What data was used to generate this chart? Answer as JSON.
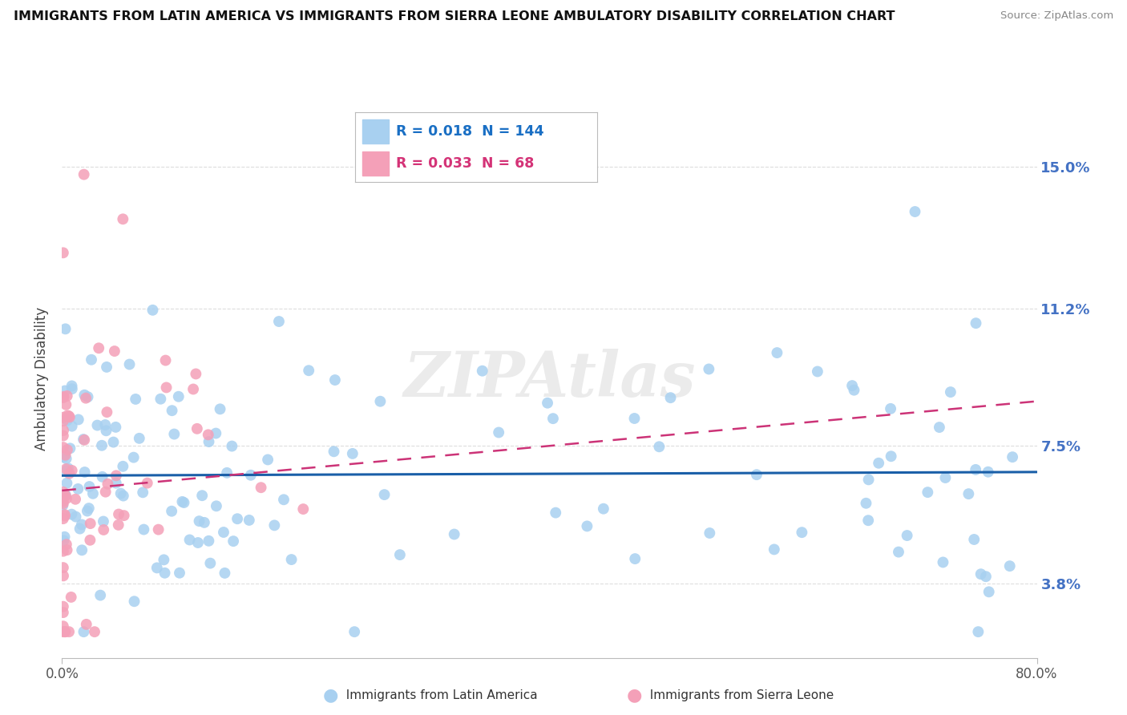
{
  "title": "IMMIGRANTS FROM LATIN AMERICA VS IMMIGRANTS FROM SIERRA LEONE AMBULATORY DISABILITY CORRELATION CHART",
  "source": "Source: ZipAtlas.com",
  "ylabel": "Ambulatory Disability",
  "ytick_vals": [
    0.038,
    0.075,
    0.112,
    0.15
  ],
  "ytick_labels": [
    "3.8%",
    "7.5%",
    "11.2%",
    "15.0%"
  ],
  "xrange": [
    0.0,
    0.8
  ],
  "yrange": [
    0.018,
    0.168
  ],
  "series1_name": "Immigrants from Latin America",
  "series1_color": "#a8d0f0",
  "series1_line_color": "#1a5fa8",
  "series1_R": "0.018",
  "series1_N": "144",
  "series2_name": "Immigrants from Sierra Leone",
  "series2_color": "#f4a0b8",
  "series2_line_color": "#cc3377",
  "series2_R": "0.033",
  "series2_N": "68",
  "watermark": "ZIPAtlas",
  "background_color": "#ffffff",
  "grid_color": "#dddddd",
  "right_label_color": "#4472c4",
  "legend_text_color1": "#1a6fc4",
  "legend_text_color2": "#d43377"
}
